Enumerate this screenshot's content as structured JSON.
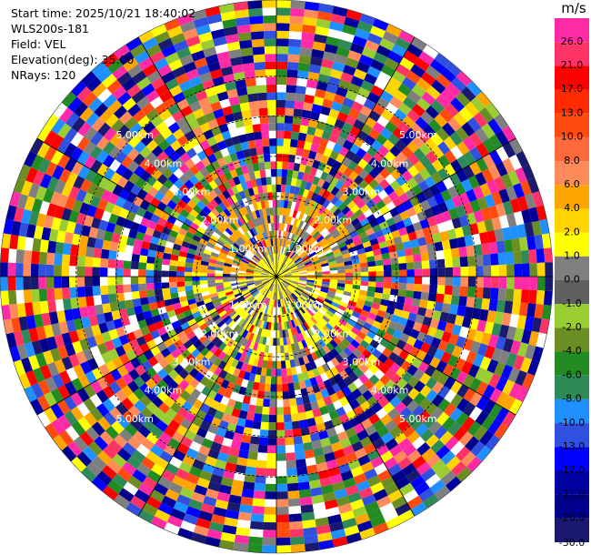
{
  "info": {
    "start_time": "Start time: 2025/10/21 18:40:02",
    "station": "WLS200s-181",
    "field": "Field: VEL",
    "elevation": "Elevation(deg): 35.00",
    "nrays": "NRays: 120"
  },
  "colorbar": {
    "unit": "m/s",
    "ticks": [
      "26.0",
      "21.0",
      "17.0",
      "13.0",
      "10.0",
      "8.0",
      "6.0",
      "4.0",
      "2.0",
      "1.0",
      "0.0",
      "-1.0",
      "-2.0",
      "-4.0",
      "-6.0",
      "-8.0",
      "-10.0",
      "-13.0",
      "-17.0",
      "-21.0",
      "-26.0",
      "-30.0"
    ],
    "colors": [
      "#ff2aa6",
      "#ff3366",
      "#ff0000",
      "#ff2a00",
      "#ff4a10",
      "#ff6a3c",
      "#ff8a5a",
      "#ffa500",
      "#ffd400",
      "#ffff00",
      "#7f7f7f",
      "#606060",
      "#9acd32",
      "#6b8e23",
      "#228b22",
      "#2e8b57",
      "#1e90ff",
      "#3050e0",
      "#0000ff",
      "#0000a0",
      "#00008b",
      "#191970"
    ]
  },
  "chart_data": {
    "type": "heatmap",
    "projection": "polar (PPI)",
    "field": "VEL",
    "units": "m/s",
    "elevation_deg": 35.0,
    "nrays": 120,
    "range_ring_labels": [
      "1.00km",
      "2.00km",
      "3.00km",
      "4.00km",
      "5.00km"
    ],
    "range_rings_km": [
      1,
      2,
      3,
      4,
      5
    ],
    "max_range_km": 6.9,
    "colorbar_range": [
      -30,
      26
    ]
  }
}
